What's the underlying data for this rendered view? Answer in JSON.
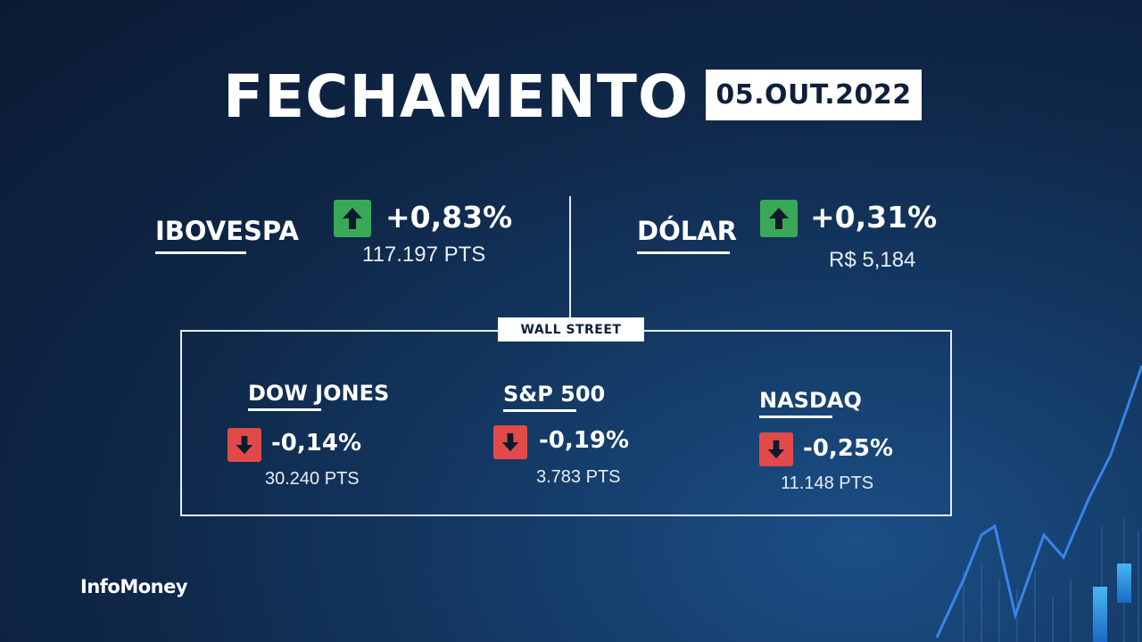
{
  "header": {
    "title": "FECHAMENTO",
    "date": "05.OUT.2022"
  },
  "ibovespa": {
    "name": "IBOVESPA",
    "direction": "up",
    "change": "+0,83%",
    "value": "117.197 PTS"
  },
  "dolar": {
    "name": "DÓLAR",
    "direction": "up",
    "change": "+0,31%",
    "value": "R$ 5,184"
  },
  "wall_street": {
    "label": "WALL STREET",
    "indices": [
      {
        "name": "DOW JONES",
        "direction": "down",
        "change": "-0,14%",
        "value": "30.240 PTS"
      },
      {
        "name": "S&P 500",
        "direction": "down",
        "change": "-0,19%",
        "value": "3.783 PTS"
      },
      {
        "name": "NASDAQ",
        "direction": "down",
        "change": "-0,25%",
        "value": "11.148 PTS"
      }
    ]
  },
  "brand": {
    "logo": "InfoMoney"
  },
  "colors": {
    "up": "#3aa957",
    "down": "#e24a4a",
    "background": "#0f2748"
  }
}
